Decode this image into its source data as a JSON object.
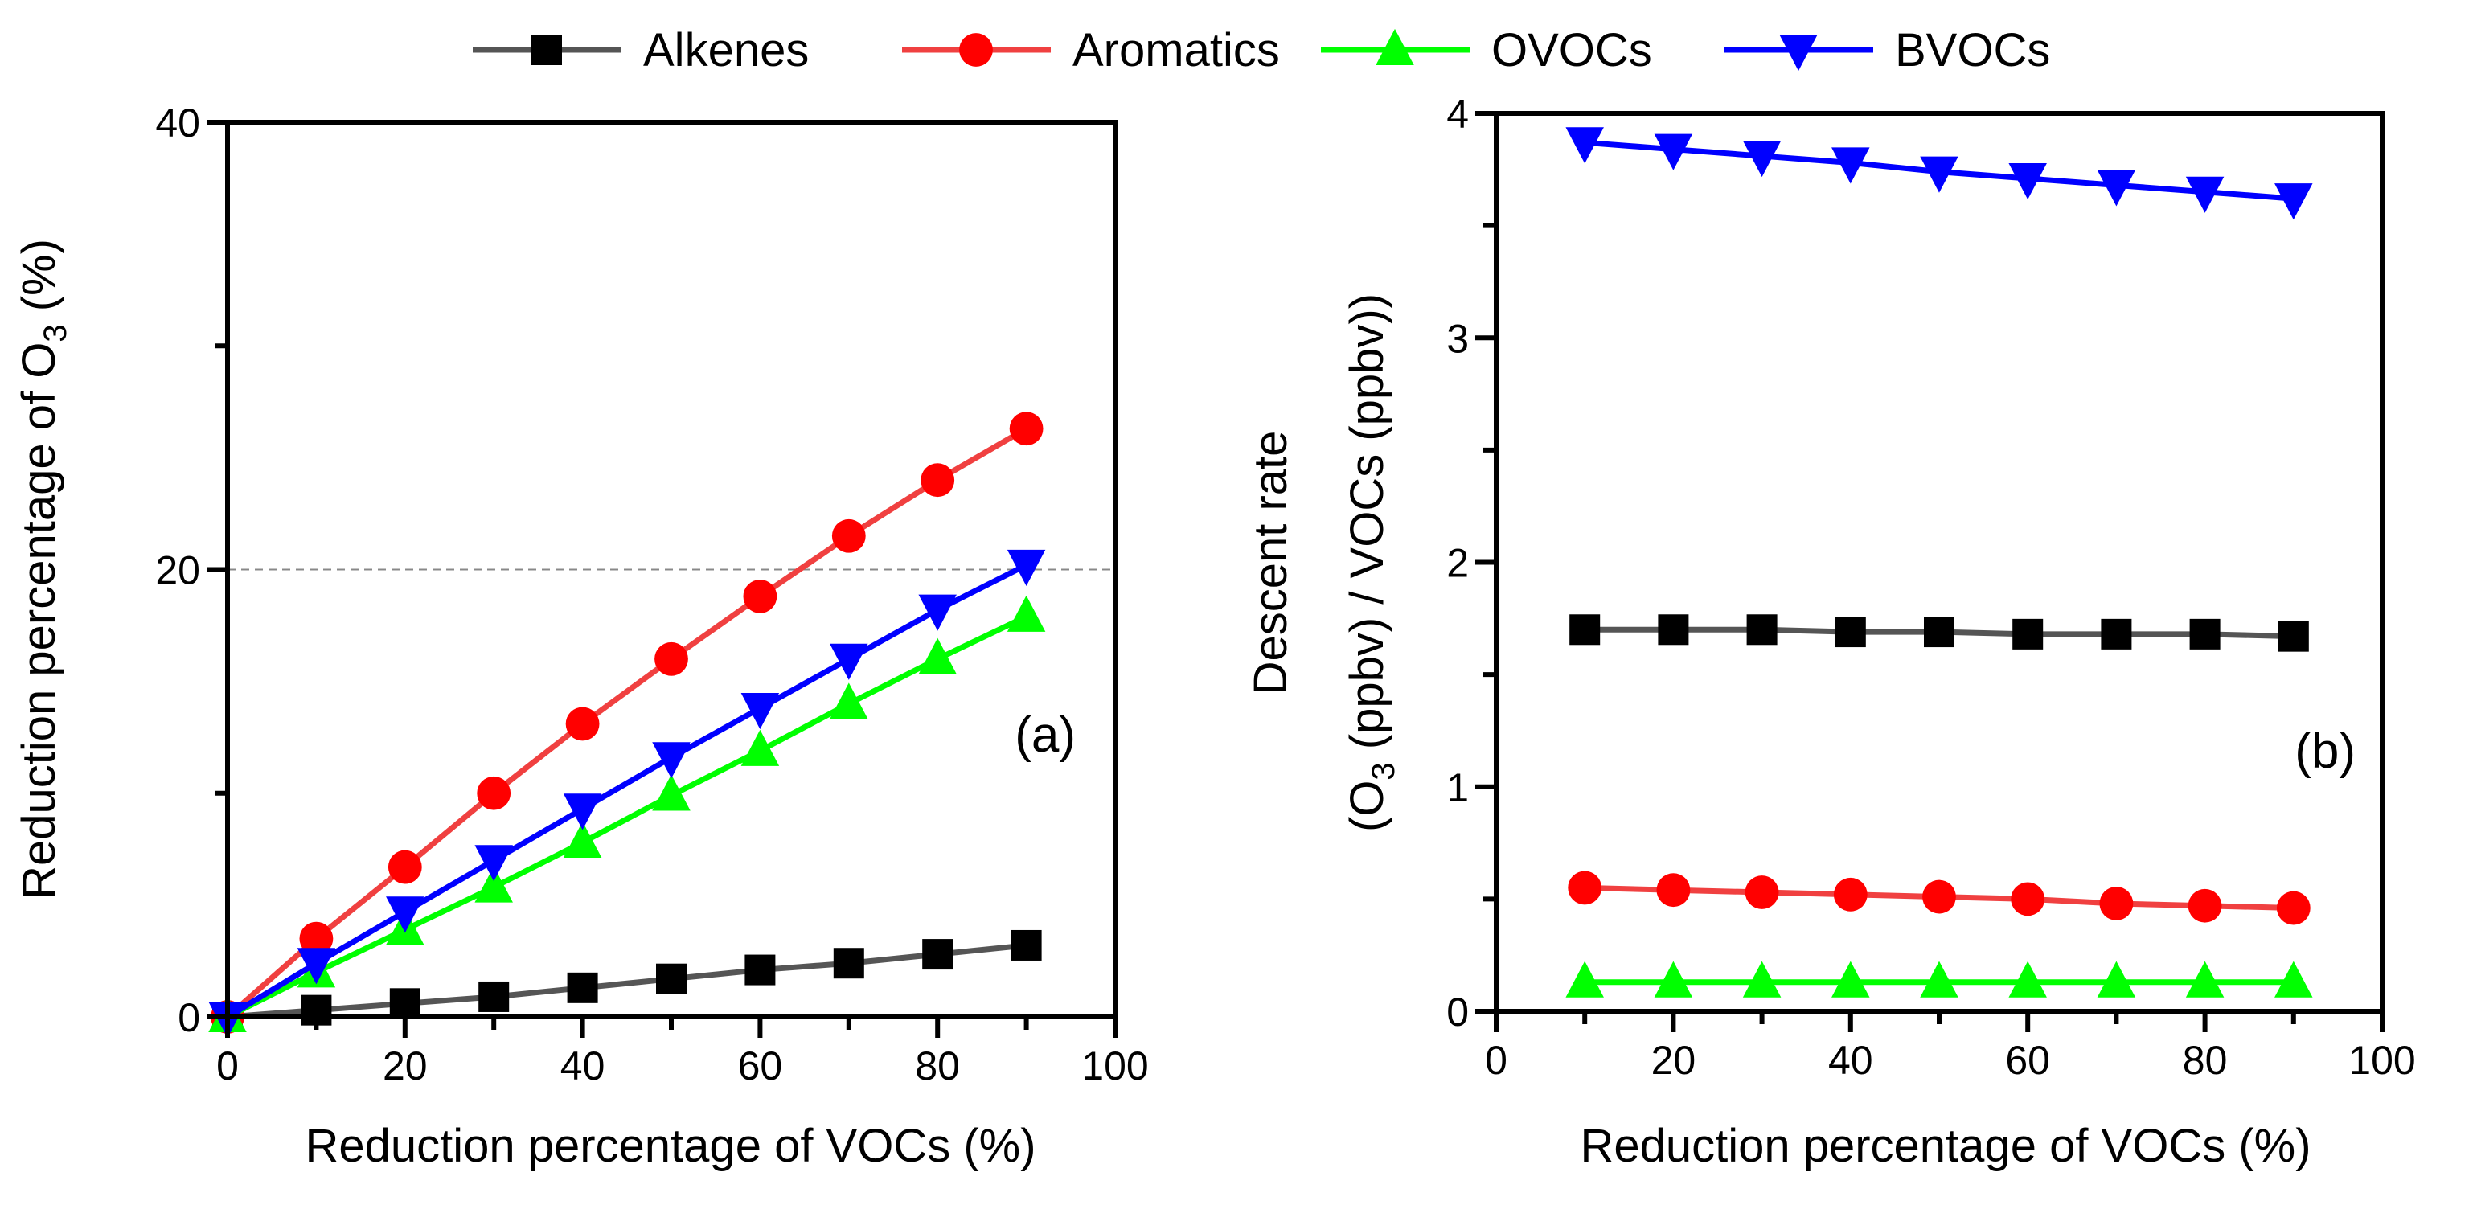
{
  "legend": [
    "Alkenes",
    "Aromatics",
    "OVOCs",
    "BVOCs"
  ],
  "colors": {
    "Alkenes": "#000000",
    "Aromatics": "#ff0000",
    "OVOCs": "#00ff00",
    "BVOCs": "#0000ff"
  },
  "line_colors": {
    "Alkenes": "#555555",
    "Aromatics": "#f04040",
    "OVOCs": "#00ff00",
    "BVOCs": "#0000ff"
  },
  "markers": {
    "Alkenes": "square",
    "Aromatics": "circle",
    "OVOCs": "triangle-up",
    "BVOCs": "triangle-down"
  },
  "chart_data": [
    {
      "type": "line",
      "panel_label": "(a)",
      "xlabel": "Reduction percentage of VOCs  (%)",
      "ylabel_pre": "Reduction percentage of  O",
      "ylabel_sub": "3",
      "ylabel_post": " (%)",
      "xlim": [
        0,
        100
      ],
      "ylim": [
        0,
        40
      ],
      "xticks": [
        0,
        20,
        40,
        60,
        80,
        100
      ],
      "yticks": [
        0,
        20,
        40
      ],
      "minor_yticks": [
        10,
        30
      ],
      "reference_line_y": 20,
      "x": [
        0,
        10,
        20,
        30,
        40,
        50,
        60,
        70,
        80,
        90
      ],
      "series": [
        {
          "name": "Alkenes",
          "values": [
            0,
            0.3,
            0.6,
            0.9,
            1.3,
            1.7,
            2.1,
            2.4,
            2.8,
            3.2
          ]
        },
        {
          "name": "Aromatics",
          "values": [
            0,
            3.5,
            6.7,
            10.0,
            13.1,
            16.0,
            18.8,
            21.5,
            24.0,
            26.3
          ]
        },
        {
          "name": "OVOCs",
          "values": [
            0,
            2.0,
            3.9,
            5.8,
            7.8,
            9.9,
            11.9,
            14.0,
            16.0,
            17.9
          ]
        },
        {
          "name": "BVOCs",
          "values": [
            0,
            2.4,
            4.7,
            7.0,
            9.3,
            11.6,
            13.8,
            16.0,
            18.2,
            20.2
          ]
        }
      ]
    },
    {
      "type": "line",
      "panel_label": "(b)",
      "xlabel": "Reduction percentage of VOCs (%)",
      "ylabel_line1": "Descent rate",
      "ylabel_pre": "(O",
      "ylabel_sub": "3",
      "ylabel_post": " (ppbv) / VOCs (ppbv))",
      "xlim": [
        0,
        100
      ],
      "ylim": [
        0,
        4
      ],
      "xticks": [
        0,
        20,
        40,
        60,
        80,
        100
      ],
      "yticks": [
        0,
        1,
        2,
        3,
        4
      ],
      "minor_yticks": [
        0.5,
        1.5,
        2.5,
        3.5
      ],
      "x": [
        10,
        20,
        30,
        40,
        50,
        60,
        70,
        80,
        90
      ],
      "series": [
        {
          "name": "Alkenes",
          "values": [
            1.7,
            1.7,
            1.7,
            1.69,
            1.69,
            1.68,
            1.68,
            1.68,
            1.67
          ]
        },
        {
          "name": "Aromatics",
          "values": [
            0.55,
            0.54,
            0.53,
            0.52,
            0.51,
            0.5,
            0.48,
            0.47,
            0.46
          ]
        },
        {
          "name": "OVOCs",
          "values": [
            0.13,
            0.13,
            0.13,
            0.13,
            0.13,
            0.13,
            0.13,
            0.13,
            0.13
          ]
        },
        {
          "name": "BVOCs",
          "values": [
            3.87,
            3.84,
            3.81,
            3.78,
            3.74,
            3.71,
            3.68,
            3.65,
            3.62
          ]
        }
      ]
    }
  ]
}
